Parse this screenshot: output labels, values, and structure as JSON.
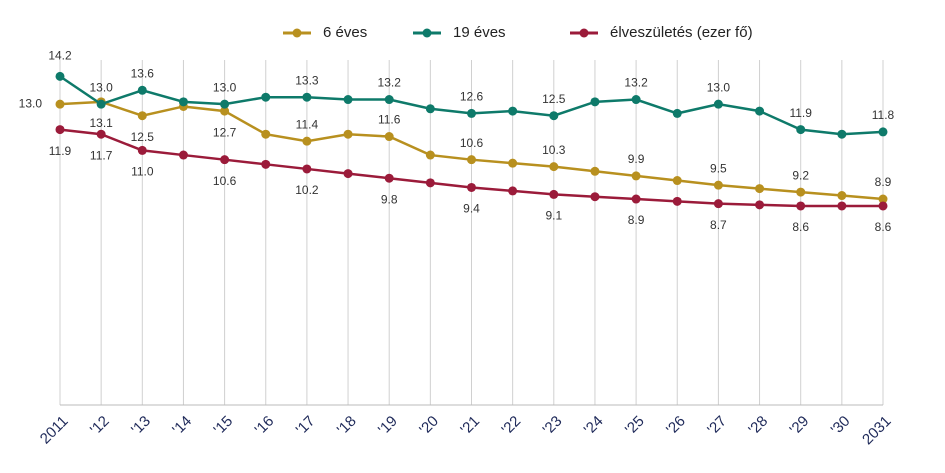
{
  "chart_data": {
    "type": "line",
    "categories": [
      "2011",
      "'12",
      "'13",
      "'14",
      "'15",
      "'16",
      "'17",
      "'18",
      "'19",
      "'20",
      "'21",
      "'22",
      "'23",
      "'24",
      "'25",
      "'26",
      "'27",
      "'28",
      "'29",
      "'30",
      "2031"
    ],
    "ylim": [
      0,
      17.5
    ],
    "grid": true,
    "legend": "top",
    "series": [
      {
        "name": "6 éves",
        "color": "#b8901f",
        "values": [
          13.0,
          13.1,
          12.5,
          12.9,
          12.7,
          11.7,
          11.4,
          11.7,
          11.6,
          10.8,
          10.6,
          10.45,
          10.3,
          10.1,
          9.9,
          9.7,
          9.5,
          9.35,
          9.2,
          9.05,
          8.9
        ],
        "value_labels": [
          "13.0",
          "13.1",
          "12.5",
          null,
          "12.7",
          null,
          "11.4",
          null,
          "11.6",
          null,
          "10.6",
          null,
          "10.3",
          null,
          "9.9",
          null,
          "9.5",
          null,
          "9.2",
          null,
          "8.9"
        ]
      },
      {
        "name": "19 éves",
        "color": "#0e7a6a",
        "values": [
          14.2,
          13.0,
          13.6,
          13.1,
          13.0,
          13.3,
          13.3,
          13.2,
          13.2,
          12.8,
          12.6,
          12.7,
          12.5,
          13.1,
          13.2,
          12.6,
          13.0,
          12.7,
          11.9,
          11.7,
          11.8
        ],
        "value_labels": [
          "14.2",
          "13.0",
          "13.6",
          null,
          "13.0",
          null,
          "13.3",
          null,
          "13.2",
          null,
          "12.6",
          null,
          "12.5",
          null,
          "13.2",
          null,
          "13.0",
          null,
          "11.9",
          null,
          "11.8"
        ]
      },
      {
        "name": "élveszületés (ezer fő)",
        "color": "#9b1b3a",
        "values": [
          11.9,
          11.7,
          11.0,
          10.8,
          10.6,
          10.4,
          10.2,
          10.0,
          9.8,
          9.6,
          9.4,
          9.25,
          9.1,
          9.0,
          8.9,
          8.8,
          8.7,
          8.65,
          8.6,
          8.6,
          8.6
        ],
        "value_labels": [
          "11.9",
          "11.7",
          "11.0",
          null,
          "10.6",
          null,
          "10.2",
          null,
          "9.8",
          null,
          "9.4",
          null,
          "9.1",
          null,
          "8.9",
          null,
          "8.7",
          null,
          "8.6",
          null,
          "8.6"
        ]
      }
    ]
  }
}
